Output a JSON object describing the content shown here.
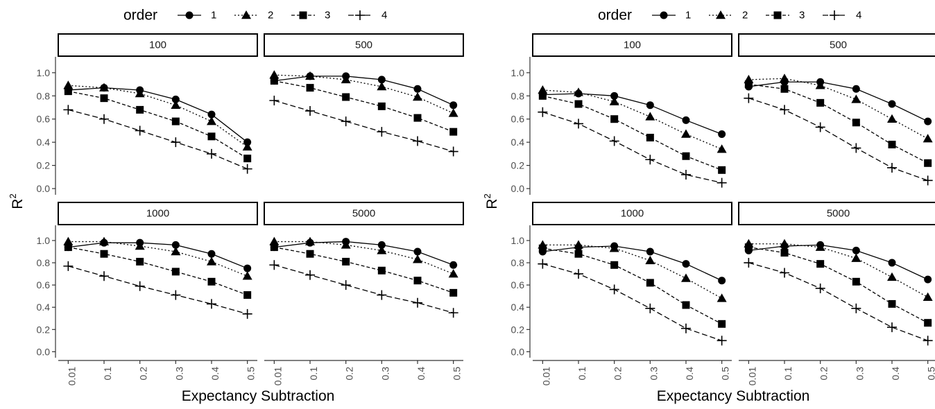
{
  "legend": {
    "title": "order",
    "items": [
      {
        "label": "1",
        "shape": "circle",
        "dash": "solid"
      },
      {
        "label": "2",
        "shape": "triangle",
        "dash": "dotted"
      },
      {
        "label": "3",
        "shape": "square",
        "dash": "dashed"
      },
      {
        "label": "4",
        "shape": "plus",
        "dash": "longdash"
      }
    ]
  },
  "chart_data": [
    {
      "type": "line",
      "xlabel": "Expectancy Subtraction",
      "ylabel": "R",
      "ylabel_sup": "2",
      "ylim": [
        0,
        1
      ],
      "yticks": [
        "0.0",
        "0.2",
        "0.4",
        "0.6",
        "0.8",
        "1.0"
      ],
      "categories": [
        "0.01",
        "0.1",
        "0.2",
        "0.3",
        "0.4",
        "0.5"
      ],
      "legend_position": "top",
      "panels": [
        {
          "label": "100",
          "series": [
            {
              "name": "1",
              "values": [
                0.85,
                0.87,
                0.85,
                0.77,
                0.64,
                0.4
              ]
            },
            {
              "name": "2",
              "values": [
                0.89,
                0.87,
                0.82,
                0.72,
                0.58,
                0.36
              ]
            },
            {
              "name": "3",
              "values": [
                0.84,
                0.78,
                0.68,
                0.58,
                0.45,
                0.26
              ]
            },
            {
              "name": "4",
              "values": [
                0.68,
                0.6,
                0.5,
                0.4,
                0.3,
                0.17
              ]
            }
          ]
        },
        {
          "label": "500",
          "series": [
            {
              "name": "1",
              "values": [
                0.93,
                0.97,
                0.97,
                0.94,
                0.86,
                0.72
              ]
            },
            {
              "name": "2",
              "values": [
                0.98,
                0.97,
                0.94,
                0.88,
                0.79,
                0.65
              ]
            },
            {
              "name": "3",
              "values": [
                0.93,
                0.87,
                0.79,
                0.71,
                0.61,
                0.49
              ]
            },
            {
              "name": "4",
              "values": [
                0.76,
                0.67,
                0.58,
                0.49,
                0.41,
                0.32
              ]
            }
          ]
        },
        {
          "label": "1000",
          "series": [
            {
              "name": "1",
              "values": [
                0.94,
                0.98,
                0.98,
                0.96,
                0.88,
                0.75
              ]
            },
            {
              "name": "2",
              "values": [
                0.99,
                0.99,
                0.95,
                0.9,
                0.81,
                0.68
              ]
            },
            {
              "name": "3",
              "values": [
                0.94,
                0.88,
                0.81,
                0.72,
                0.63,
                0.51
              ]
            },
            {
              "name": "4",
              "values": [
                0.77,
                0.68,
                0.59,
                0.51,
                0.43,
                0.34
              ]
            }
          ]
        },
        {
          "label": "5000",
          "series": [
            {
              "name": "1",
              "values": [
                0.94,
                0.98,
                0.99,
                0.96,
                0.9,
                0.78
              ]
            },
            {
              "name": "2",
              "values": [
                0.99,
                0.99,
                0.96,
                0.91,
                0.83,
                0.7
              ]
            },
            {
              "name": "3",
              "values": [
                0.94,
                0.88,
                0.81,
                0.73,
                0.64,
                0.53
              ]
            },
            {
              "name": "4",
              "values": [
                0.78,
                0.69,
                0.6,
                0.51,
                0.44,
                0.35
              ]
            }
          ]
        }
      ]
    },
    {
      "type": "line",
      "xlabel": "Expectancy Subtraction",
      "ylabel": "R",
      "ylabel_sup": "2",
      "ylim": [
        0,
        1
      ],
      "yticks": [
        "0.0",
        "0.2",
        "0.4",
        "0.6",
        "0.8",
        "1.0"
      ],
      "categories": [
        "0.01",
        "0.1",
        "0.2",
        "0.3",
        "0.4",
        "0.5"
      ],
      "legend_position": "top",
      "panels": [
        {
          "label": "100",
          "series": [
            {
              "name": "1",
              "values": [
                0.81,
                0.82,
                0.8,
                0.72,
                0.59,
                0.47
              ]
            },
            {
              "name": "2",
              "values": [
                0.85,
                0.83,
                0.75,
                0.62,
                0.47,
                0.34
              ]
            },
            {
              "name": "3",
              "values": [
                0.8,
                0.73,
                0.6,
                0.44,
                0.28,
                0.16
              ]
            },
            {
              "name": "4",
              "values": [
                0.66,
                0.56,
                0.41,
                0.25,
                0.12,
                0.05
              ]
            }
          ]
        },
        {
          "label": "500",
          "series": [
            {
              "name": "1",
              "values": [
                0.88,
                0.92,
                0.92,
                0.86,
                0.73,
                0.58
              ]
            },
            {
              "name": "2",
              "values": [
                0.94,
                0.95,
                0.89,
                0.77,
                0.6,
                0.43
              ]
            },
            {
              "name": "3",
              "values": [
                0.9,
                0.86,
                0.74,
                0.57,
                0.38,
                0.22
              ]
            },
            {
              "name": "4",
              "values": [
                0.78,
                0.68,
                0.53,
                0.35,
                0.18,
                0.07
              ]
            }
          ]
        },
        {
          "label": "1000",
          "series": [
            {
              "name": "1",
              "values": [
                0.9,
                0.94,
                0.95,
                0.9,
                0.79,
                0.64
              ]
            },
            {
              "name": "2",
              "values": [
                0.96,
                0.96,
                0.93,
                0.82,
                0.66,
                0.48
              ]
            },
            {
              "name": "3",
              "values": [
                0.93,
                0.88,
                0.78,
                0.62,
                0.42,
                0.25
              ]
            },
            {
              "name": "4",
              "values": [
                0.79,
                0.7,
                0.56,
                0.39,
                0.21,
                0.1
              ]
            }
          ]
        },
        {
          "label": "5000",
          "series": [
            {
              "name": "1",
              "values": [
                0.91,
                0.95,
                0.96,
                0.91,
                0.8,
                0.65
              ]
            },
            {
              "name": "2",
              "values": [
                0.97,
                0.97,
                0.94,
                0.84,
                0.67,
                0.49
              ]
            },
            {
              "name": "3",
              "values": [
                0.94,
                0.89,
                0.79,
                0.63,
                0.43,
                0.26
              ]
            },
            {
              "name": "4",
              "values": [
                0.8,
                0.71,
                0.57,
                0.39,
                0.22,
                0.1
              ]
            }
          ]
        }
      ]
    }
  ]
}
